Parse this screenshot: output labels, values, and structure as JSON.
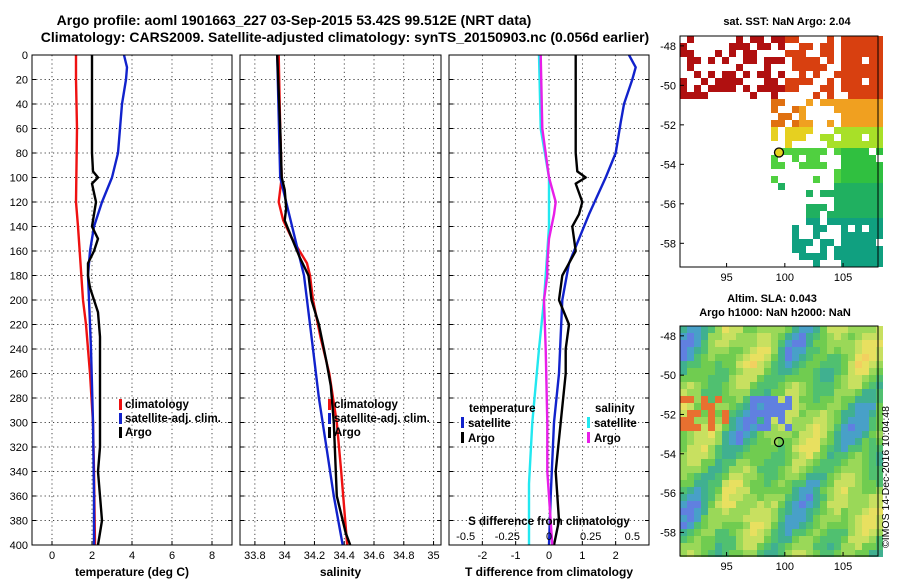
{
  "title_line1": "Argo profile: aoml 1901663_227 03-Sep-2015 53.42S 99.512E (NRT data)",
  "title_line2": "Climatology: CARS2009. Satellite-adjusted climatology: synTS_20150903.nc (0.056d earlier)",
  "watermark": "©IMOS 14-Dec-2016 10:04:48",
  "colors": {
    "red": "#ee1111",
    "blue": "#1122cc",
    "black": "#000000",
    "cyan": "#22e8f0",
    "magenta": "#e81ee8"
  },
  "chart_data": [
    {
      "type": "line",
      "name": "temperature",
      "xlabel": "temperature (deg C)",
      "xlim": [
        -1,
        9
      ],
      "ylim": [
        0,
        400
      ],
      "yticks": [
        "0",
        "20",
        "40",
        "60",
        "80",
        "100",
        "120",
        "140",
        "160",
        "180",
        "200",
        "220",
        "240",
        "260",
        "280",
        "300",
        "320",
        "340",
        "360",
        "380",
        "400"
      ],
      "xticks": [
        "0",
        "2",
        "4",
        "6",
        "8"
      ],
      "legend": [
        "climatology",
        "satellite-adj. clim.",
        "Argo"
      ],
      "series": [
        {
          "name": "climatology",
          "color": "red",
          "depth": [
            0,
            20,
            60,
            120,
            140,
            200,
            220,
            260,
            300,
            340,
            400
          ],
          "values": [
            1.2,
            1.2,
            1.25,
            1.2,
            1.3,
            1.55,
            1.7,
            1.9,
            2.05,
            2.1,
            2.15
          ]
        },
        {
          "name": "satellite-adj. clim.",
          "color": "blue",
          "depth": [
            0,
            10,
            20,
            40,
            60,
            80,
            100,
            120,
            140,
            160,
            180,
            200,
            240,
            300,
            360,
            400
          ],
          "values": [
            3.6,
            3.75,
            3.7,
            3.5,
            3.4,
            3.3,
            3.0,
            2.5,
            2.1,
            1.9,
            1.8,
            1.85,
            1.95,
            2.05,
            2.1,
            2.1
          ]
        },
        {
          "name": "Argo",
          "color": "black",
          "depth": [
            0,
            80,
            95,
            100,
            105,
            120,
            130,
            140,
            150,
            160,
            170,
            180,
            190,
            210,
            230,
            260,
            280,
            300,
            320,
            340,
            380,
            400
          ],
          "values": [
            2.0,
            2.0,
            2.05,
            2.3,
            2.0,
            2.2,
            2.1,
            2.0,
            2.3,
            2.1,
            1.8,
            1.8,
            1.9,
            2.3,
            2.4,
            2.4,
            2.4,
            2.4,
            2.4,
            2.3,
            2.5,
            2.3
          ]
        }
      ]
    },
    {
      "type": "line",
      "name": "salinity",
      "xlabel": "salinity",
      "xlim": [
        33.7,
        35.05
      ],
      "ylim": [
        0,
        400
      ],
      "xticks": [
        "33.8",
        "34",
        "34.2",
        "34.4",
        "34.6",
        "34.8",
        "35"
      ],
      "legend": [
        "climatology",
        "satellite-adj. clim.",
        "Argo"
      ],
      "series": [
        {
          "name": "climatology",
          "color": "red",
          "depth": [
            0,
            60,
            100,
            120,
            135,
            150,
            160,
            170,
            180,
            200,
            230,
            260,
            300,
            340,
            400
          ],
          "values": [
            33.96,
            33.97,
            33.98,
            33.96,
            33.99,
            34.05,
            34.1,
            34.15,
            34.17,
            34.19,
            34.24,
            34.3,
            34.35,
            34.38,
            34.42
          ]
        },
        {
          "name": "satellite-adj. clim.",
          "color": "blue",
          "depth": [
            0,
            100,
            150,
            180,
            200,
            240,
            280,
            320,
            360,
            400
          ],
          "values": [
            33.95,
            33.97,
            34.07,
            34.13,
            34.15,
            34.19,
            34.23,
            34.28,
            34.33,
            34.39
          ]
        },
        {
          "name": "Argo",
          "color": "black",
          "depth": [
            0,
            60,
            100,
            110,
            125,
            135,
            150,
            165,
            180,
            200,
            220,
            250,
            270,
            300,
            330,
            360,
            390,
            400
          ],
          "values": [
            33.95,
            33.97,
            33.98,
            34.0,
            34.01,
            34.0,
            34.05,
            34.1,
            34.16,
            34.18,
            34.23,
            34.28,
            34.31,
            34.33,
            34.34,
            34.35,
            34.41,
            34.44
          ]
        }
      ]
    },
    {
      "type": "line",
      "name": "difference",
      "xlabel": "T difference from climatology",
      "xlabel_top": "S difference from climatology",
      "xlim": [
        -3,
        3
      ],
      "ylim": [
        0,
        400
      ],
      "xticks": [
        "-2",
        "-1",
        "0",
        "1",
        "2"
      ],
      "top_xticks": [
        "-0.5",
        "-0.25",
        "0",
        "0.25",
        "0.5"
      ],
      "legend_temperature": {
        "header": "temperature",
        "items": [
          "satellite",
          "Argo"
        ]
      },
      "legend_salinity": {
        "header": "salinity",
        "items": [
          "satellite",
          "Argo"
        ]
      },
      "series": [
        {
          "name": "T satellite",
          "color": "blue",
          "depth": [
            0,
            10,
            20,
            40,
            55,
            80,
            100,
            130,
            170,
            200,
            260,
            300,
            360,
            400
          ],
          "values": [
            2.4,
            2.6,
            2.5,
            2.25,
            2.15,
            2.0,
            1.7,
            1.2,
            0.6,
            0.4,
            0.3,
            0.15,
            0.05,
            0.0
          ]
        },
        {
          "name": "T Argo",
          "color": "black",
          "depth": [
            0,
            80,
            95,
            100,
            105,
            120,
            130,
            140,
            160,
            180,
            200,
            220,
            240,
            260,
            300,
            340,
            380,
            400
          ],
          "values": [
            0.8,
            0.8,
            0.85,
            1.1,
            0.8,
            1.0,
            0.9,
            0.7,
            0.8,
            0.4,
            0.3,
            0.6,
            0.5,
            0.5,
            0.35,
            0.2,
            0.3,
            0.15
          ]
        },
        {
          "name": "S satellite",
          "color": "cyan",
          "depth": [
            0,
            60,
            100,
            140,
            180,
            200,
            240,
            300,
            350,
            400
          ],
          "values": [
            -0.06,
            -0.05,
            0.0,
            0.0,
            -0.02,
            -0.03,
            -0.06,
            -0.1,
            -0.12,
            -0.12
          ]
        },
        {
          "name": "S Argo",
          "color": "magenta",
          "depth": [
            0,
            60,
            100,
            120,
            130,
            150,
            170,
            180,
            200,
            240,
            300,
            340,
            400
          ],
          "values": [
            -0.05,
            -0.04,
            0.0,
            0.04,
            0.03,
            0.0,
            -0.01,
            -0.01,
            -0.03,
            -0.02,
            -0.01,
            -0.01,
            0.02
          ]
        }
      ]
    },
    {
      "type": "heatmap",
      "name": "sst-map",
      "title": "sat. SST: NaN Argo: 2.04",
      "xticks": [
        "95",
        "100",
        "105"
      ],
      "yticks": [
        "-48",
        "-50",
        "-52",
        "-54",
        "-56",
        "-58"
      ],
      "xlim": [
        91,
        108
      ],
      "ylim": [
        -59.2,
        -47.5
      ],
      "argo_position": [
        99.5,
        -53.4
      ]
    },
    {
      "type": "heatmap",
      "name": "sla-map",
      "title_line1": "Altim. SLA: 0.043",
      "title_line2": "Argo h1000: NaN h2000: NaN",
      "xticks": [
        "95",
        "100",
        "105"
      ],
      "yticks": [
        "-48",
        "-50",
        "-52",
        "-54",
        "-56",
        "-58"
      ],
      "xlim": [
        91,
        108
      ],
      "ylim": [
        -59.2,
        -47.5
      ],
      "argo_position": [
        99.5,
        -53.4
      ]
    }
  ]
}
